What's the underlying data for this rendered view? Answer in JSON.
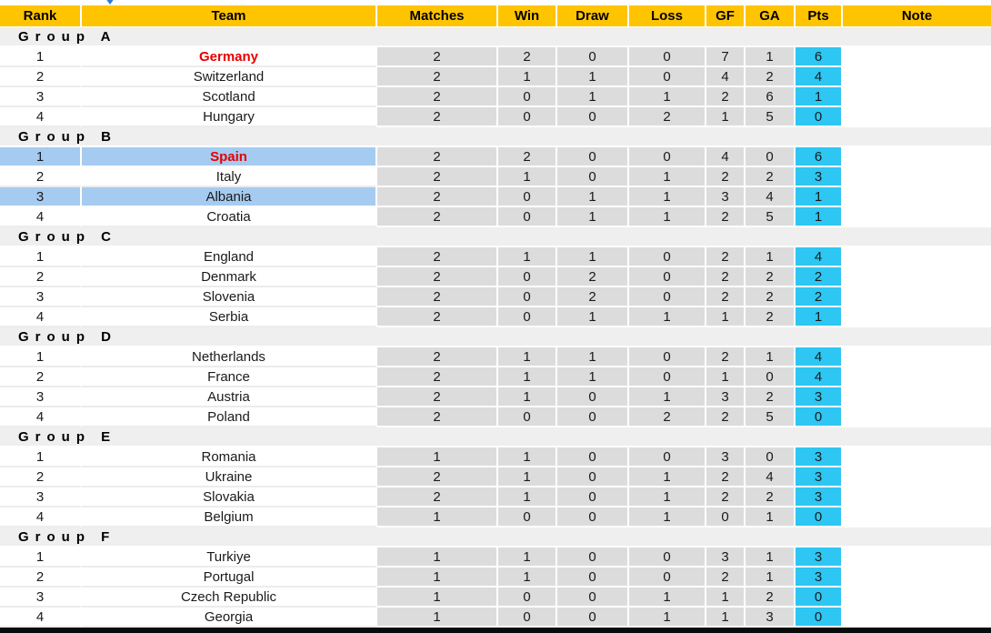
{
  "icons": {
    "scroll_arrow": "chevron-down-icon"
  },
  "colors": {
    "header_bg": "#ffc400",
    "stat_cell_bg": "#dcdcdc",
    "pts_cell_bg": "#2ec6f2",
    "highlight_row_bg": "#a6cbf0",
    "group_row_bg": "#efefef",
    "hot_team_text": "#e60000",
    "arrow_blue": "#2b7bd9"
  },
  "table": {
    "columns": [
      "Rank",
      "Team",
      "Matches",
      "Win",
      "Draw",
      "Loss",
      "GF",
      "GA",
      "Pts",
      "Note"
    ],
    "groups": [
      {
        "label": "Group A",
        "rows": [
          {
            "rank": "1",
            "team": "Germany",
            "red": true,
            "hl": false,
            "matches": "2",
            "win": "2",
            "draw": "0",
            "loss": "0",
            "gf": "7",
            "ga": "1",
            "pts": "6",
            "note": ""
          },
          {
            "rank": "2",
            "team": "Switzerland",
            "red": false,
            "hl": false,
            "matches": "2",
            "win": "1",
            "draw": "1",
            "loss": "0",
            "gf": "4",
            "ga": "2",
            "pts": "4",
            "note": ""
          },
          {
            "rank": "3",
            "team": "Scotland",
            "red": false,
            "hl": false,
            "matches": "2",
            "win": "0",
            "draw": "1",
            "loss": "1",
            "gf": "2",
            "ga": "6",
            "pts": "1",
            "note": ""
          },
          {
            "rank": "4",
            "team": "Hungary",
            "red": false,
            "hl": false,
            "matches": "2",
            "win": "0",
            "draw": "0",
            "loss": "2",
            "gf": "1",
            "ga": "5",
            "pts": "0",
            "note": ""
          }
        ]
      },
      {
        "label": "Group B",
        "rows": [
          {
            "rank": "1",
            "team": "Spain",
            "red": true,
            "hl": true,
            "matches": "2",
            "win": "2",
            "draw": "0",
            "loss": "0",
            "gf": "4",
            "ga": "0",
            "pts": "6",
            "note": ""
          },
          {
            "rank": "2",
            "team": "Italy",
            "red": false,
            "hl": false,
            "matches": "2",
            "win": "1",
            "draw": "0",
            "loss": "1",
            "gf": "2",
            "ga": "2",
            "pts": "3",
            "note": ""
          },
          {
            "rank": "3",
            "team": "Albania",
            "red": false,
            "hl": true,
            "matches": "2",
            "win": "0",
            "draw": "1",
            "loss": "1",
            "gf": "3",
            "ga": "4",
            "pts": "1",
            "note": ""
          },
          {
            "rank": "4",
            "team": "Croatia",
            "red": false,
            "hl": false,
            "matches": "2",
            "win": "0",
            "draw": "1",
            "loss": "1",
            "gf": "2",
            "ga": "5",
            "pts": "1",
            "note": ""
          }
        ]
      },
      {
        "label": "Group C",
        "rows": [
          {
            "rank": "1",
            "team": "England",
            "red": false,
            "hl": false,
            "matches": "2",
            "win": "1",
            "draw": "1",
            "loss": "0",
            "gf": "2",
            "ga": "1",
            "pts": "4",
            "note": ""
          },
          {
            "rank": "2",
            "team": "Denmark",
            "red": false,
            "hl": false,
            "matches": "2",
            "win": "0",
            "draw": "2",
            "loss": "0",
            "gf": "2",
            "ga": "2",
            "pts": "2",
            "note": ""
          },
          {
            "rank": "3",
            "team": "Slovenia",
            "red": false,
            "hl": false,
            "matches": "2",
            "win": "0",
            "draw": "2",
            "loss": "0",
            "gf": "2",
            "ga": "2",
            "pts": "2",
            "note": ""
          },
          {
            "rank": "4",
            "team": "Serbia",
            "red": false,
            "hl": false,
            "matches": "2",
            "win": "0",
            "draw": "1",
            "loss": "1",
            "gf": "1",
            "ga": "2",
            "pts": "1",
            "note": ""
          }
        ]
      },
      {
        "label": "Group D",
        "rows": [
          {
            "rank": "1",
            "team": "Netherlands",
            "red": false,
            "hl": false,
            "matches": "2",
            "win": "1",
            "draw": "1",
            "loss": "0",
            "gf": "2",
            "ga": "1",
            "pts": "4",
            "note": ""
          },
          {
            "rank": "2",
            "team": "France",
            "red": false,
            "hl": false,
            "matches": "2",
            "win": "1",
            "draw": "1",
            "loss": "0",
            "gf": "1",
            "ga": "0",
            "pts": "4",
            "note": ""
          },
          {
            "rank": "3",
            "team": "Austria",
            "red": false,
            "hl": false,
            "matches": "2",
            "win": "1",
            "draw": "0",
            "loss": "1",
            "gf": "3",
            "ga": "2",
            "pts": "3",
            "note": ""
          },
          {
            "rank": "4",
            "team": "Poland",
            "red": false,
            "hl": false,
            "matches": "2",
            "win": "0",
            "draw": "0",
            "loss": "2",
            "gf": "2",
            "ga": "5",
            "pts": "0",
            "note": ""
          }
        ]
      },
      {
        "label": "Group E",
        "rows": [
          {
            "rank": "1",
            "team": "Romania",
            "red": false,
            "hl": false,
            "matches": "1",
            "win": "1",
            "draw": "0",
            "loss": "0",
            "gf": "3",
            "ga": "0",
            "pts": "3",
            "note": ""
          },
          {
            "rank": "2",
            "team": "Ukraine",
            "red": false,
            "hl": false,
            "matches": "2",
            "win": "1",
            "draw": "0",
            "loss": "1",
            "gf": "2",
            "ga": "4",
            "pts": "3",
            "note": ""
          },
          {
            "rank": "3",
            "team": "Slovakia",
            "red": false,
            "hl": false,
            "matches": "2",
            "win": "1",
            "draw": "0",
            "loss": "1",
            "gf": "2",
            "ga": "2",
            "pts": "3",
            "note": ""
          },
          {
            "rank": "4",
            "team": "Belgium",
            "red": false,
            "hl": false,
            "matches": "1",
            "win": "0",
            "draw": "0",
            "loss": "1",
            "gf": "0",
            "ga": "1",
            "pts": "0",
            "note": ""
          }
        ]
      },
      {
        "label": "Group F",
        "rows": [
          {
            "rank": "1",
            "team": "Turkiye",
            "red": false,
            "hl": false,
            "matches": "1",
            "win": "1",
            "draw": "0",
            "loss": "0",
            "gf": "3",
            "ga": "1",
            "pts": "3",
            "note": ""
          },
          {
            "rank": "2",
            "team": "Portugal",
            "red": false,
            "hl": false,
            "matches": "1",
            "win": "1",
            "draw": "0",
            "loss": "0",
            "gf": "2",
            "ga": "1",
            "pts": "3",
            "note": ""
          },
          {
            "rank": "3",
            "team": "Czech Republic",
            "red": false,
            "hl": false,
            "matches": "1",
            "win": "0",
            "draw": "0",
            "loss": "1",
            "gf": "1",
            "ga": "2",
            "pts": "0",
            "note": ""
          },
          {
            "rank": "4",
            "team": "Georgia",
            "red": false,
            "hl": false,
            "matches": "1",
            "win": "0",
            "draw": "0",
            "loss": "1",
            "gf": "1",
            "ga": "3",
            "pts": "0",
            "note": ""
          }
        ]
      }
    ]
  }
}
